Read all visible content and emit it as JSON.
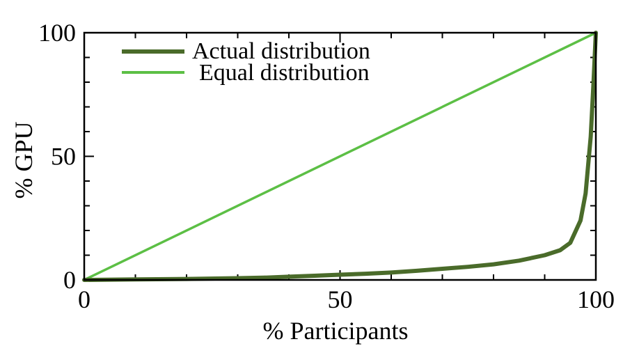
{
  "chart_data": {
    "type": "line",
    "title": "",
    "xlabel": "% Participants",
    "ylabel": "% GPU",
    "xlim": [
      0,
      100
    ],
    "ylim": [
      0,
      100
    ],
    "xticks": [
      0,
      50,
      100
    ],
    "yticks": [
      0,
      50,
      100
    ],
    "x_tick_labels": [
      "0",
      "50",
      "100"
    ],
    "y_tick_labels": [
      "0",
      "50",
      "100"
    ],
    "grid": false,
    "legend_position": "top-left",
    "series": [
      {
        "name": "Actual distribution",
        "color": "#4a6b2a",
        "points": [
          [
            0,
            0
          ],
          [
            10,
            0.2
          ],
          [
            20,
            0.4
          ],
          [
            30,
            0.7
          ],
          [
            35,
            0.9
          ],
          [
            40,
            1.3
          ],
          [
            45,
            1.7
          ],
          [
            50,
            2.1
          ],
          [
            55,
            2.5
          ],
          [
            60,
            3.0
          ],
          [
            65,
            3.7
          ],
          [
            70,
            4.5
          ],
          [
            75,
            5.3
          ],
          [
            80,
            6.3
          ],
          [
            85,
            7.8
          ],
          [
            90,
            10.0
          ],
          [
            93,
            12.0
          ],
          [
            95,
            15.0
          ],
          [
            97,
            24.0
          ],
          [
            98,
            35.0
          ],
          [
            99,
            58.0
          ],
          [
            99.5,
            78.0
          ],
          [
            100,
            100
          ]
        ]
      },
      {
        "name": "Equal distribution",
        "color": "#5cbf45",
        "points": [
          [
            0,
            0
          ],
          [
            100,
            100
          ]
        ]
      }
    ]
  }
}
